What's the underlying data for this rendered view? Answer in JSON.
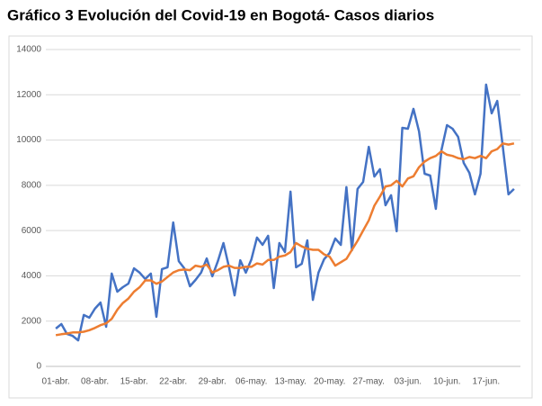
{
  "chart_data": {
    "type": "line",
    "title": "Gráfico 3 Evolución del Covid-19 en Bogotá- Casos diarios",
    "categories": [
      "01-abr.",
      null,
      null,
      null,
      null,
      null,
      null,
      "08-abr.",
      null,
      null,
      null,
      null,
      null,
      null,
      "15-abr.",
      null,
      null,
      null,
      null,
      null,
      null,
      "22-abr.",
      null,
      null,
      null,
      null,
      null,
      null,
      "29-abr.",
      null,
      null,
      null,
      null,
      null,
      null,
      "06-may.",
      null,
      null,
      null,
      null,
      null,
      null,
      "13-may.",
      null,
      null,
      null,
      null,
      null,
      null,
      "20-may.",
      null,
      null,
      null,
      null,
      null,
      null,
      "27-may.",
      null,
      null,
      null,
      null,
      null,
      null,
      "03-jun.",
      null,
      null,
      null,
      null,
      null,
      null,
      "10-jun.",
      null,
      null,
      null,
      null,
      null,
      null,
      "17-jun.",
      null,
      null,
      null,
      null,
      null
    ],
    "series": [
      {
        "color": "#4472c4",
        "values": [
          1670,
          1870,
          1430,
          1350,
          1150,
          2270,
          2150,
          2550,
          2820,
          1750,
          4100,
          3300,
          3500,
          3660,
          4330,
          4140,
          3860,
          4100,
          2190,
          4300,
          4380,
          6360,
          4650,
          4330,
          3540,
          3820,
          4140,
          4770,
          3980,
          4650,
          5450,
          4380,
          3140,
          4690,
          4140,
          4730,
          5690,
          5370,
          5770,
          3460,
          5450,
          5050,
          7720,
          4380,
          4530,
          5570,
          2940,
          4140,
          4730,
          5010,
          5650,
          5370,
          7920,
          5130,
          7840,
          8150,
          9700,
          8390,
          8710,
          7120,
          7560,
          5970,
          10540,
          10500,
          11380,
          10380,
          8510,
          8430,
          6960,
          9550,
          10660,
          10500,
          10140,
          8990,
          8550,
          7600,
          8510,
          12450,
          11180,
          11730,
          9670,
          7600,
          7840
        ]
      },
      {
        "color": "#ed7d31",
        "values": [
          1380,
          1420,
          1450,
          1500,
          1500,
          1530,
          1600,
          1700,
          1820,
          1900,
          2100,
          2500,
          2800,
          3000,
          3300,
          3500,
          3800,
          3800,
          3650,
          3750,
          3950,
          4150,
          4250,
          4280,
          4250,
          4450,
          4400,
          4500,
          4150,
          4250,
          4400,
          4450,
          4350,
          4350,
          4400,
          4400,
          4550,
          4500,
          4700,
          4700,
          4850,
          4900,
          5050,
          5450,
          5300,
          5200,
          5150,
          5150,
          4950,
          4850,
          4450,
          4600,
          4750,
          5150,
          5550,
          6000,
          6450,
          7100,
          7500,
          7950,
          8000,
          8200,
          7950,
          8300,
          8400,
          8800,
          9050,
          9200,
          9300,
          9500,
          9350,
          9300,
          9200,
          9150,
          9250,
          9200,
          9300,
          9200,
          9500,
          9600,
          9850,
          9800,
          9850
        ]
      }
    ],
    "ylim": [
      0,
      14000
    ],
    "yticks": [
      0,
      2000,
      4000,
      6000,
      8000,
      10000,
      12000,
      14000
    ],
    "grid": true
  }
}
